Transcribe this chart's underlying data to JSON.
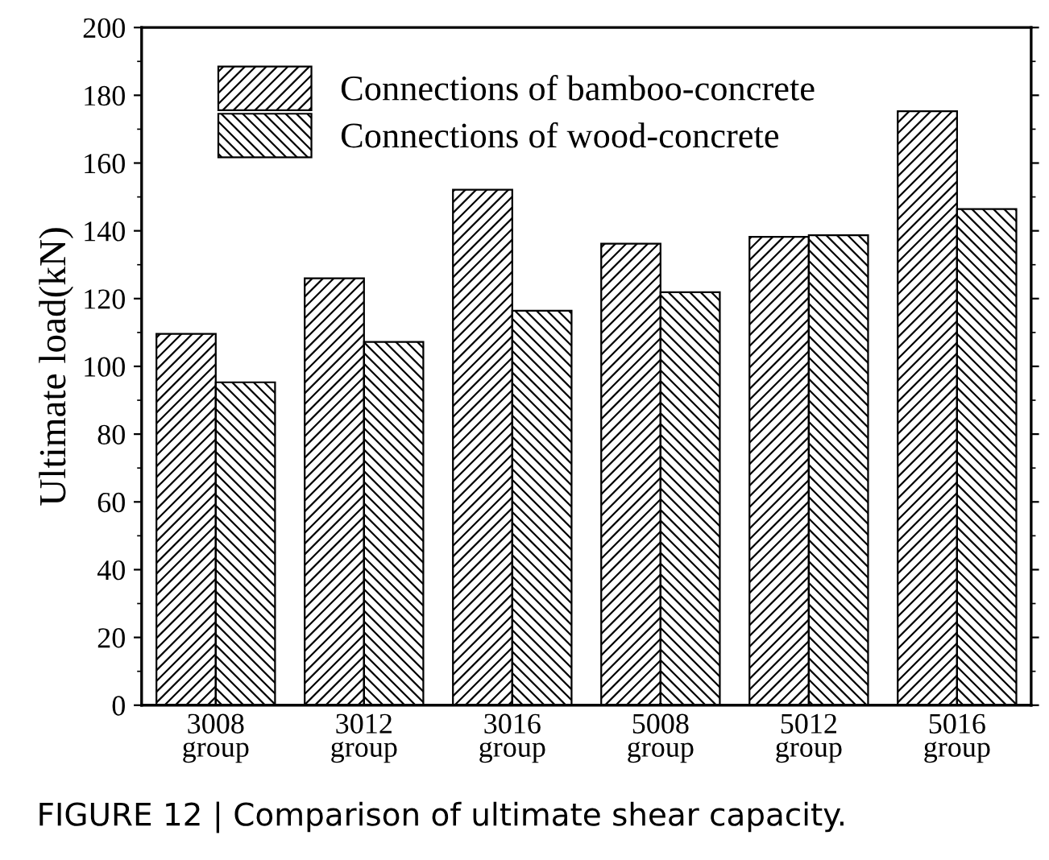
{
  "chart_data": {
    "type": "bar",
    "categories": [
      "3008\ngroup",
      "3012\ngroup",
      "3016\ngroup",
      "5008\ngroup",
      "5012\ngroup",
      "5016\ngroup"
    ],
    "series": [
      {
        "name": "Connections of bamboo-concrete",
        "color": "#000000",
        "values": [
          109.6,
          126.0,
          152.1,
          136.2,
          138.2,
          175.3
        ]
      },
      {
        "name": "Connections of wood-concrete",
        "color": "#000000",
        "values": [
          95.3,
          107.2,
          116.4,
          121.9,
          138.7,
          146.4
        ]
      }
    ],
    "ylabel": "Ultimate load(kN)",
    "ylim": [
      0,
      200
    ],
    "yticks": [
      0,
      20,
      40,
      60,
      80,
      100,
      120,
      140,
      160,
      180,
      200
    ],
    "legend": "top left",
    "grid": false,
    "annotations": [
      "FIGURE 12 | Comparison of ultimate shear capacity."
    ]
  }
}
